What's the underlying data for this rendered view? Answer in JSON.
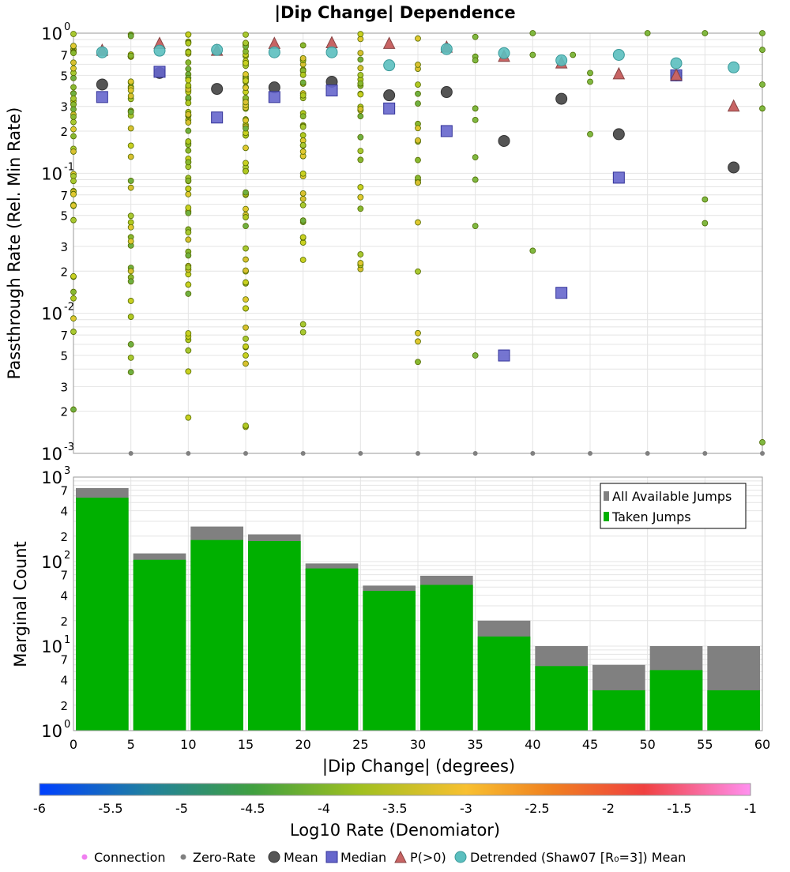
{
  "title": "|Dip Change| Dependence",
  "top": {
    "ylabel": "Passthrough Rate (Rel. Min Rate)",
    "ylim": [
      0.001,
      1
    ],
    "scale": "log",
    "yticks": [
      {
        "value": 1,
        "base": "10",
        "exp": "0"
      },
      {
        "value": 0.7,
        "label": "7"
      },
      {
        "value": 0.5,
        "label": "5"
      },
      {
        "value": 0.3,
        "label": "3"
      },
      {
        "value": 0.2,
        "label": "2"
      },
      {
        "value": 0.1,
        "base": "10",
        "exp": "-1"
      },
      {
        "value": 0.07,
        "label": "7"
      },
      {
        "value": 0.05,
        "label": "5"
      },
      {
        "value": 0.03,
        "label": "3"
      },
      {
        "value": 0.02,
        "label": "2"
      },
      {
        "value": 0.01,
        "base": "10",
        "exp": "-2"
      },
      {
        "value": 0.007,
        "label": "7"
      },
      {
        "value": 0.005,
        "label": "5"
      },
      {
        "value": 0.003,
        "label": "3"
      },
      {
        "value": 0.002,
        "label": "2"
      },
      {
        "value": 0.001,
        "base": "10",
        "exp": "-3"
      }
    ]
  },
  "bottom": {
    "ylabel": "Marginal Count",
    "xlabel": "|Dip Change| (degrees)",
    "ylim": [
      1,
      1000
    ],
    "scale": "log",
    "yticks": [
      {
        "value": 1000,
        "base": "10",
        "exp": "3"
      },
      {
        "value": 700,
        "label": "7"
      },
      {
        "value": 400,
        "label": "4"
      },
      {
        "value": 200,
        "label": "2"
      },
      {
        "value": 100,
        "base": "10",
        "exp": "2"
      },
      {
        "value": 70,
        "label": "7"
      },
      {
        "value": 40,
        "label": "4"
      },
      {
        "value": 20,
        "label": "2"
      },
      {
        "value": 10,
        "base": "10",
        "exp": "1"
      },
      {
        "value": 7,
        "label": "7"
      },
      {
        "value": 4,
        "label": "4"
      },
      {
        "value": 2,
        "label": "2"
      },
      {
        "value": 1,
        "base": "10",
        "exp": "0"
      }
    ],
    "xticks": [
      "0",
      "5",
      "10",
      "15",
      "20",
      "25",
      "30",
      "35",
      "40",
      "45",
      "50",
      "55",
      "60"
    ],
    "legend": [
      "All Available Jumps",
      "Taken Jumps"
    ]
  },
  "colorbar": {
    "label": "Log10 Rate (Denomiator)",
    "ticks": [
      "-6",
      "-5.5",
      "-5",
      "-4.5",
      "-4",
      "-3.5",
      "-3",
      "-2.5",
      "-2",
      "-1.5",
      "-1"
    ],
    "range": [
      -6,
      -1
    ]
  },
  "legend_items": [
    "Connection",
    "Zero-Rate",
    "Mean",
    "Median",
    "P(>0)",
    "Detrended (Shaw07 [R₀=3]) Mean"
  ],
  "chart_data": [
    {
      "type": "scatter",
      "title": "|Dip Change| Dependence",
      "ylabel": "Passthrough Rate (Rel. Min Rate)",
      "xlim": [
        0,
        60
      ],
      "ylim": [
        0.001,
        1
      ],
      "yscale": "log",
      "grid": true,
      "series": [
        {
          "name": "Mean",
          "marker": "circle",
          "color": "#555555",
          "x": [
            2.5,
            7.5,
            12.5,
            17.5,
            22.5,
            27.5,
            32.5,
            37.5,
            42.5,
            47.5,
            52.5,
            57.5
          ],
          "y": [
            0.43,
            0.52,
            0.4,
            0.41,
            0.45,
            0.36,
            0.38,
            0.17,
            0.34,
            0.19,
            0.5,
            0.11
          ]
        },
        {
          "name": "Median",
          "marker": "square",
          "color": "#6666cc",
          "x": [
            2.5,
            7.5,
            12.5,
            17.5,
            22.5,
            27.5,
            32.5,
            37.5,
            42.5,
            47.5,
            52.5
          ],
          "y": [
            0.35,
            0.53,
            0.25,
            0.35,
            0.39,
            0.29,
            0.2,
            0.005,
            0.014,
            0.093,
            0.5
          ]
        },
        {
          "name": "P(>0)",
          "marker": "triangle",
          "color": "#c86464",
          "x": [
            2.5,
            7.5,
            12.5,
            17.5,
            22.5,
            27.5,
            32.5,
            37.5,
            42.5,
            47.5,
            52.5,
            57.5
          ],
          "y": [
            0.75,
            0.84,
            0.75,
            0.84,
            0.85,
            0.84,
            0.79,
            0.68,
            0.61,
            0.51,
            0.5,
            0.3
          ]
        },
        {
          "name": "Detrended (Shaw07 [R₀=3]) Mean",
          "marker": "circle",
          "color": "#5bbfbf",
          "x": [
            2.5,
            7.5,
            12.5,
            17.5,
            22.5,
            27.5,
            32.5,
            37.5,
            42.5,
            47.5,
            52.5,
            57.5
          ],
          "y": [
            0.73,
            0.75,
            0.76,
            0.73,
            0.73,
            0.59,
            0.77,
            0.72,
            0.64,
            0.7,
            0.61,
            0.57
          ]
        }
      ],
      "connection_columns": [
        {
          "x": 0,
          "ymin": 0.002,
          "ymax": 1,
          "n": 45
        },
        {
          "x": 5,
          "ymin": 0.003,
          "ymax": 1,
          "n": 40
        },
        {
          "x": 10,
          "ymin": 0.0013,
          "ymax": 1,
          "n": 65
        },
        {
          "x": 15,
          "ymin": 0.0013,
          "ymax": 1,
          "n": 70
        },
        {
          "x": 20,
          "ymin": 0.003,
          "ymax": 1,
          "n": 40
        },
        {
          "x": 25,
          "ymin": 0.005,
          "ymax": 1,
          "n": 25
        },
        {
          "x": 30,
          "ymin": 0.0013,
          "ymax": 1,
          "n": 20
        }
      ],
      "connection_points": [
        {
          "x": 35,
          "y": 0.94
        },
        {
          "x": 35,
          "y": 0.68
        },
        {
          "x": 35,
          "y": 0.64
        },
        {
          "x": 35,
          "y": 0.29
        },
        {
          "x": 35,
          "y": 0.24
        },
        {
          "x": 35,
          "y": 0.13
        },
        {
          "x": 35,
          "y": 0.09
        },
        {
          "x": 35,
          "y": 0.042
        },
        {
          "x": 35,
          "y": 0.005
        },
        {
          "x": 40,
          "y": 1.0
        },
        {
          "x": 40,
          "y": 0.7
        },
        {
          "x": 40,
          "y": 0.028
        },
        {
          "x": 43.5,
          "y": 0.7
        },
        {
          "x": 45,
          "y": 0.52
        },
        {
          "x": 45,
          "y": 0.45
        },
        {
          "x": 45,
          "y": 0.19
        },
        {
          "x": 50,
          "y": 1.0
        },
        {
          "x": 55,
          "y": 1.0
        },
        {
          "x": 55,
          "y": 0.065
        },
        {
          "x": 55,
          "y": 0.044
        },
        {
          "x": 60,
          "y": 1.0
        },
        {
          "x": 60,
          "y": 0.76
        },
        {
          "x": 60,
          "y": 0.43
        },
        {
          "x": 60,
          "y": 0.29
        },
        {
          "x": 60,
          "y": 0.0012
        }
      ],
      "zero_rate_points": [
        {
          "x": 5,
          "y": 0.001
        },
        {
          "x": 10,
          "y": 0.001
        },
        {
          "x": 15,
          "y": 0.001
        },
        {
          "x": 20,
          "y": 0.001
        },
        {
          "x": 25,
          "y": 0.001
        },
        {
          "x": 30,
          "y": 0.001
        },
        {
          "x": 35,
          "y": 0.001
        },
        {
          "x": 40,
          "y": 0.001
        },
        {
          "x": 45,
          "y": 0.001
        },
        {
          "x": 50,
          "y": 0.001
        },
        {
          "x": 55,
          "y": 0.001
        },
        {
          "x": 60,
          "y": 0.001
        }
      ]
    },
    {
      "type": "bar",
      "xlabel": "|Dip Change| (degrees)",
      "ylabel": "Marginal Count",
      "xlim": [
        0,
        60
      ],
      "ylim": [
        1,
        1000
      ],
      "yscale": "log",
      "legend_position": "top-right",
      "categories": [
        "0-5",
        "5-10",
        "10-15",
        "15-20",
        "20-25",
        "25-30",
        "30-35",
        "35-40",
        "40-45",
        "45-50",
        "50-55",
        "55-60"
      ],
      "series": [
        {
          "name": "All Available Jumps",
          "color": "#808080",
          "values": [
            740,
            125,
            260,
            210,
            95,
            52,
            68,
            20,
            10,
            6,
            10,
            10
          ]
        },
        {
          "name": "Taken Jumps",
          "color": "#00b000",
          "values": [
            570,
            105,
            180,
            175,
            83,
            45,
            53,
            13,
            5.8,
            3,
            5.2,
            3
          ]
        }
      ]
    }
  ]
}
